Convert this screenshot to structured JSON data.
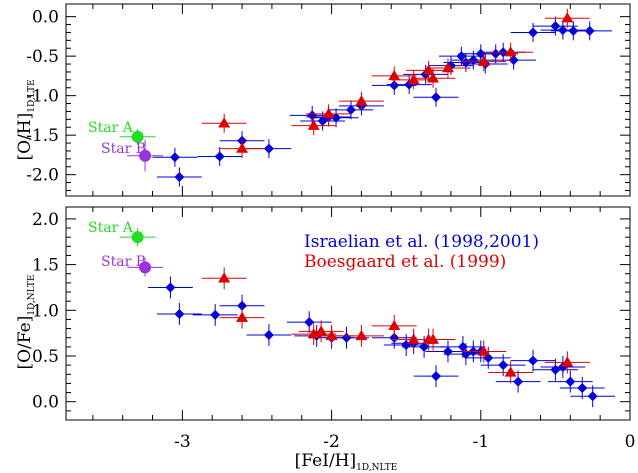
{
  "chart_data": [
    {
      "type": "scatter",
      "xlabel": "[FeI/H]",
      "xlabel_sub": "1D,NLTE",
      "ylabel": "[O/H]",
      "ylabel_sub": "1D,LTE",
      "xlim": [
        -3.78,
        0.0
      ],
      "ylim": [
        -2.27,
        0.16
      ],
      "xticks": [
        -3,
        -2,
        -1,
        0
      ],
      "xtick_labels": [
        "",
        "",
        "",
        ""
      ],
      "yticks": [
        0.0,
        -0.5,
        -1.0,
        -1.5,
        -2.0
      ],
      "ytick_labels": [
        "0.0",
        "-0.5",
        "-1.0",
        "-1.5",
        "-2.0"
      ],
      "grid": false,
      "series": [
        {
          "name": "",
          "marker": "diamond",
          "color": "#0000dd",
          "x": [
            -3.05,
            -3.02,
            -2.75,
            -2.6,
            -2.42,
            -2.13,
            -2.06,
            -2.02,
            -1.97,
            -1.87,
            -1.8,
            -1.58,
            -1.48,
            -1.37,
            -1.3,
            -1.2,
            -1.13,
            -1.1,
            -1.05,
            -1.0,
            -0.97,
            -0.9,
            -0.85,
            -0.78,
            -0.65,
            -0.5,
            -0.45,
            -0.38,
            -0.27
          ],
          "y": [
            -1.78,
            -2.03,
            -1.77,
            -1.57,
            -1.67,
            -1.25,
            -1.32,
            -1.27,
            -1.28,
            -1.18,
            -1.13,
            -0.87,
            -0.86,
            -0.73,
            -1.02,
            -0.62,
            -0.5,
            -0.58,
            -0.55,
            -0.47,
            -0.6,
            -0.47,
            -0.45,
            -0.55,
            -0.2,
            -0.12,
            -0.17,
            -0.18,
            -0.18
          ],
          "xerr": [
            0.15,
            0.15,
            0.15,
            0.15,
            0.15,
            0.15,
            0.15,
            0.15,
            0.15,
            0.15,
            0.15,
            0.15,
            0.15,
            0.15,
            0.15,
            0.15,
            0.15,
            0.15,
            0.15,
            0.15,
            0.15,
            0.15,
            0.15,
            0.15,
            0.15,
            0.15,
            0.15,
            0.15,
            0.15
          ],
          "yerr": [
            0.12,
            0.12,
            0.12,
            0.12,
            0.12,
            0.12,
            0.12,
            0.12,
            0.12,
            0.12,
            0.12,
            0.12,
            0.12,
            0.12,
            0.12,
            0.12,
            0.12,
            0.12,
            0.12,
            0.12,
            0.12,
            0.12,
            0.12,
            0.12,
            0.12,
            0.12,
            0.12,
            0.12,
            0.12
          ]
        },
        {
          "name": "",
          "marker": "triangle",
          "color": "#dd0000",
          "x": [
            -2.72,
            -2.6,
            -2.12,
            -2.02,
            -1.8,
            -1.58,
            -1.45,
            -1.35,
            -1.32,
            -1.22,
            -0.98,
            -0.8,
            -0.42
          ],
          "y": [
            -1.35,
            -1.67,
            -1.38,
            -1.23,
            -1.07,
            -0.75,
            -0.8,
            -0.68,
            -0.78,
            -0.65,
            -0.57,
            -0.45,
            -0.02
          ],
          "xerr": [
            0.15,
            0.15,
            0.15,
            0.15,
            0.15,
            0.15,
            0.15,
            0.15,
            0.15,
            0.15,
            0.15,
            0.15,
            0.15
          ],
          "yerr": [
            0.12,
            0.12,
            0.12,
            0.12,
            0.12,
            0.12,
            0.12,
            0.12,
            0.12,
            0.12,
            0.12,
            0.12,
            0.12
          ]
        },
        {
          "name": "Star A",
          "marker": "circle",
          "color": "#22dd22",
          "x": [
            -3.3
          ],
          "y": [
            -1.52
          ],
          "xerr": [
            0.12
          ],
          "yerr": [
            0.1
          ]
        },
        {
          "name": "Star B",
          "marker": "circle",
          "color": "#9933dd",
          "x": [
            -3.25
          ],
          "y": [
            -1.76
          ],
          "xerr": [
            0.12
          ],
          "yerr": [
            0.2
          ]
        }
      ]
    },
    {
      "type": "scatter",
      "xlabel": "[FeI/H]",
      "xlabel_sub": "1D,NLTE",
      "ylabel": "[O/Fe]",
      "ylabel_sub": "1D,NLTE",
      "xlim": [
        -3.78,
        0.0
      ],
      "ylim": [
        -0.2,
        2.13
      ],
      "xticks": [
        -3,
        -2,
        -1,
        0
      ],
      "xtick_labels": [
        "-3",
        "-2",
        "-1",
        "0"
      ],
      "yticks": [
        0.0,
        0.5,
        1.0,
        1.5,
        2.0
      ],
      "ytick_labels": [
        "0.0",
        "0.5",
        "1.0",
        "1.5",
        "2.0"
      ],
      "grid": false,
      "legend": {
        "placement": "top-right",
        "entries": [
          {
            "label": "Israelian et al. (1998,2001)",
            "color": "#0000dd"
          },
          {
            "label": "Boesgaard et al. (1999)",
            "color": "#dd0000"
          }
        ]
      },
      "series": [
        {
          "name": "Israelian et al. (1998,2001)",
          "marker": "diamond",
          "color": "#0000dd",
          "x": [
            -3.08,
            -3.02,
            -2.78,
            -2.6,
            -2.42,
            -2.15,
            -2.1,
            -2.0,
            -1.9,
            -1.58,
            -1.5,
            -1.45,
            -1.38,
            -1.3,
            -1.22,
            -1.12,
            -1.1,
            -1.05,
            -1.0,
            -0.95,
            -0.85,
            -0.75,
            -0.65,
            -0.5,
            -0.45,
            -0.4,
            -0.32,
            -0.25
          ],
          "y": [
            1.25,
            0.96,
            0.95,
            1.05,
            0.73,
            0.87,
            0.72,
            0.7,
            0.7,
            0.7,
            0.62,
            0.64,
            0.6,
            0.28,
            0.55,
            0.6,
            0.52,
            0.55,
            0.55,
            0.48,
            0.4,
            0.22,
            0.45,
            0.35,
            0.38,
            0.22,
            0.15,
            0.06
          ],
          "xerr": [
            0.15,
            0.15,
            0.15,
            0.15,
            0.15,
            0.15,
            0.15,
            0.15,
            0.15,
            0.15,
            0.15,
            0.15,
            0.15,
            0.15,
            0.15,
            0.15,
            0.15,
            0.15,
            0.15,
            0.15,
            0.15,
            0.15,
            0.15,
            0.15,
            0.15,
            0.15,
            0.15,
            0.15
          ],
          "yerr": [
            0.12,
            0.12,
            0.12,
            0.12,
            0.12,
            0.12,
            0.12,
            0.12,
            0.12,
            0.12,
            0.12,
            0.12,
            0.12,
            0.12,
            0.12,
            0.12,
            0.12,
            0.12,
            0.12,
            0.12,
            0.12,
            0.12,
            0.12,
            0.12,
            0.12,
            0.12,
            0.12,
            0.12
          ]
        },
        {
          "name": "Boesgaard et al. (1999)",
          "marker": "triangle",
          "color": "#dd0000",
          "x": [
            -2.72,
            -2.6,
            -2.12,
            -2.07,
            -2.0,
            -1.8,
            -1.58,
            -1.45,
            -1.35,
            -1.32,
            -0.98,
            -0.8,
            -0.42
          ],
          "y": [
            1.35,
            0.92,
            0.74,
            0.77,
            0.72,
            0.72,
            0.83,
            0.68,
            0.68,
            0.68,
            0.55,
            0.32,
            0.43
          ],
          "xerr": [
            0.15,
            0.15,
            0.15,
            0.15,
            0.15,
            0.15,
            0.15,
            0.15,
            0.15,
            0.15,
            0.15,
            0.15,
            0.15
          ],
          "yerr": [
            0.12,
            0.12,
            0.12,
            0.12,
            0.12,
            0.12,
            0.12,
            0.12,
            0.12,
            0.12,
            0.12,
            0.12,
            0.12
          ]
        },
        {
          "name": "Star A",
          "marker": "circle",
          "color": "#22dd22",
          "x": [
            -3.3
          ],
          "y": [
            1.8
          ],
          "xerr": [
            0.12
          ],
          "yerr": [
            0.1
          ]
        },
        {
          "name": "Star B",
          "marker": "circle",
          "color": "#9933dd",
          "x": [
            -3.25
          ],
          "y": [
            1.47
          ],
          "xerr": [
            0.12
          ],
          "yerr": [
            0.1
          ]
        }
      ]
    }
  ],
  "star_labels": {
    "star_a": {
      "label": "Star A",
      "color": "#22dd22"
    },
    "star_b": {
      "label": "Star B",
      "color": "#9933dd"
    }
  }
}
